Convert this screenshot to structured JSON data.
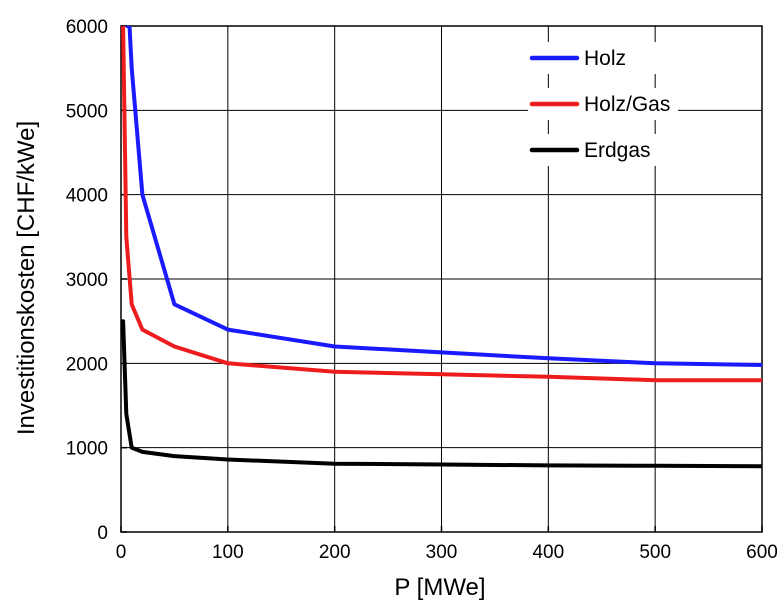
{
  "chart_data": {
    "type": "line",
    "title": "",
    "xlabel": "P  [MWe]",
    "ylabel": "Investitionskosten  [CHF/kWe]",
    "xlim": [
      0,
      600
    ],
    "ylim": [
      0,
      6000
    ],
    "xticks": [
      0,
      100,
      200,
      300,
      400,
      500,
      600
    ],
    "yticks": [
      0,
      1000,
      2000,
      3000,
      4000,
      5000,
      6000
    ],
    "grid": true,
    "legend_position": "top-right",
    "series": [
      {
        "name": "Holz",
        "color": "#1a1aff",
        "points": [
          [
            6,
            6000
          ],
          [
            8,
            6000
          ],
          [
            10,
            5500
          ],
          [
            20,
            4000
          ],
          [
            50,
            2700
          ],
          [
            100,
            2400
          ],
          [
            200,
            2200
          ],
          [
            300,
            2130
          ],
          [
            400,
            2060
          ],
          [
            500,
            2000
          ],
          [
            600,
            1980
          ]
        ]
      },
      {
        "name": "Holz/Gas",
        "color": "#ee1c1c",
        "points": [
          [
            2,
            6000
          ],
          [
            5,
            3500
          ],
          [
            10,
            2700
          ],
          [
            20,
            2400
          ],
          [
            50,
            2200
          ],
          [
            100,
            2000
          ],
          [
            200,
            1900
          ],
          [
            300,
            1870
          ],
          [
            400,
            1840
          ],
          [
            500,
            1800
          ],
          [
            600,
            1800
          ]
        ]
      },
      {
        "name": "Erdgas",
        "color": "#000000",
        "points": [
          [
            2,
            2500
          ],
          [
            5,
            1400
          ],
          [
            10,
            1000
          ],
          [
            20,
            950
          ],
          [
            50,
            900
          ],
          [
            100,
            860
          ],
          [
            200,
            810
          ],
          [
            300,
            800
          ],
          [
            400,
            790
          ],
          [
            500,
            785
          ],
          [
            600,
            780
          ]
        ]
      }
    ]
  }
}
